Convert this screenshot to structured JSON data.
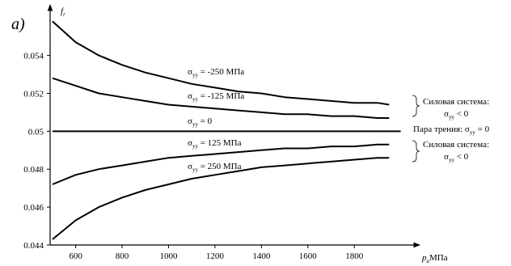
{
  "chart_data": {
    "type": "line",
    "panel_label": "a)",
    "ylabel": {
      "main": "f",
      "sub": "r"
    },
    "xlabel": {
      "main": "p",
      "sub": "a",
      "unit": "МПа"
    },
    "xlim": [
      490,
      2050
    ],
    "ylim": [
      0.044,
      0.0565
    ],
    "xticks": [
      600,
      800,
      1000,
      1200,
      1400,
      1600,
      1800
    ],
    "yticks": [
      0.044,
      0.046,
      0.048,
      0.05,
      0.052,
      0.054
    ],
    "ytick_labels": [
      "0.044",
      "0.046",
      "0.048",
      "0.05",
      "0.052",
      "0.054"
    ],
    "series": [
      {
        "label": {
          "sym": "σ",
          "sub": "yy",
          "text": " = -250 МПа"
        },
        "x": [
          500,
          600,
          700,
          800,
          900,
          1000,
          1100,
          1200,
          1300,
          1400,
          1500,
          1600,
          1700,
          1800,
          1900,
          1950
        ],
        "y": [
          0.0558,
          0.0547,
          0.054,
          0.0535,
          0.0531,
          0.0528,
          0.0525,
          0.0523,
          0.0521,
          0.052,
          0.0518,
          0.0517,
          0.0516,
          0.0515,
          0.0515,
          0.0514
        ]
      },
      {
        "label": {
          "sym": "σ",
          "sub": "yy",
          "text": " = -125 МПа"
        },
        "x": [
          500,
          600,
          700,
          800,
          900,
          1000,
          1100,
          1200,
          1300,
          1400,
          1500,
          1600,
          1700,
          1800,
          1900,
          1950
        ],
        "y": [
          0.0528,
          0.0524,
          0.052,
          0.0518,
          0.0516,
          0.0514,
          0.0513,
          0.0512,
          0.0511,
          0.051,
          0.0509,
          0.0509,
          0.0508,
          0.0508,
          0.0507,
          0.0507
        ]
      },
      {
        "label": {
          "sym": "σ",
          "sub": "yy",
          "text": " = 0"
        },
        "x": [
          500,
          2000
        ],
        "y": [
          0.05,
          0.05
        ]
      },
      {
        "label": {
          "sym": "σ",
          "sub": "yy",
          "text": " = 125 МПа"
        },
        "x": [
          500,
          600,
          700,
          800,
          900,
          1000,
          1100,
          1200,
          1300,
          1400,
          1500,
          1600,
          1700,
          1800,
          1900,
          1950
        ],
        "y": [
          0.0472,
          0.0477,
          0.048,
          0.0482,
          0.0484,
          0.0486,
          0.0487,
          0.0488,
          0.0489,
          0.049,
          0.0491,
          0.0491,
          0.0492,
          0.0492,
          0.0493,
          0.0493
        ]
      },
      {
        "label": {
          "sym": "σ",
          "sub": "yy",
          "text": " = 250 МПа"
        },
        "x": [
          500,
          600,
          700,
          800,
          900,
          1000,
          1100,
          1200,
          1300,
          1400,
          1500,
          1600,
          1700,
          1800,
          1900,
          1950
        ],
        "y": [
          0.0443,
          0.0453,
          0.046,
          0.0465,
          0.0469,
          0.0472,
          0.0475,
          0.0477,
          0.0479,
          0.0481,
          0.0482,
          0.0483,
          0.0484,
          0.0485,
          0.0486,
          0.0486
        ]
      }
    ],
    "annotations": {
      "upper_group": {
        "line1": "Силовая система:",
        "sym": "σ",
        "sub": "yy",
        "cond": " < 0"
      },
      "middle": {
        "text": "Пара трения: ",
        "sym": "σ",
        "sub": "yy",
        "cond": " = 0"
      },
      "lower_group": {
        "line1": "Силовая система:",
        "sym": "σ",
        "sub": "yy",
        "cond": " < 0"
      }
    },
    "grid": false,
    "legend": "none"
  }
}
